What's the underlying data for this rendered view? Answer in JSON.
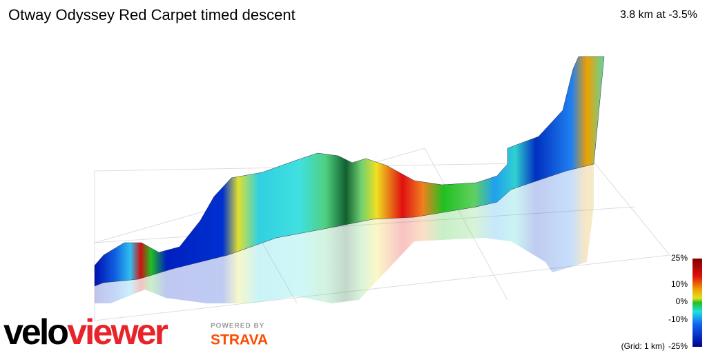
{
  "header": {
    "title": "Otway Odyssey Red Carpet timed descent",
    "summary": "3.8 km at -3.5%"
  },
  "legend": {
    "labels": [
      "25%",
      "10%",
      "0%",
      "-10%",
      "-25%"
    ],
    "grid_note": "(Grid: 1 km)"
  },
  "branding": {
    "logo_velo": "velo",
    "logo_viewer": "viewer",
    "powered_by": "POWERED BY",
    "strava": "STRAVA"
  }
}
